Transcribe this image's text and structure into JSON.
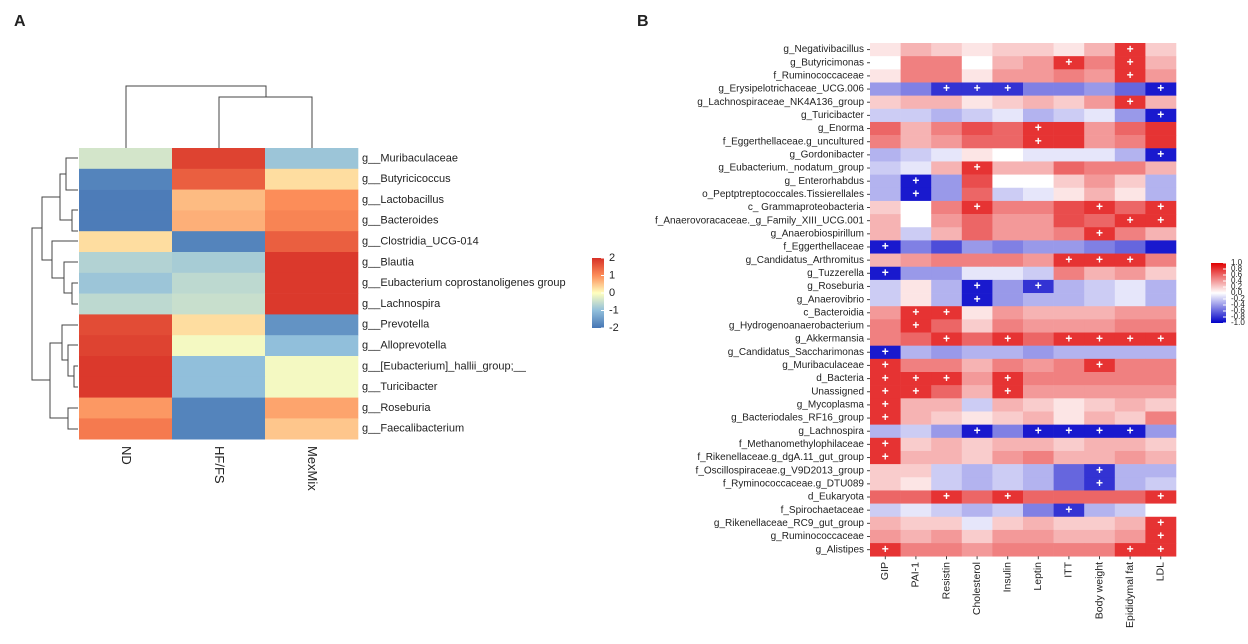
{
  "chart_data": [
    {
      "type": "heatmap",
      "panel": "A",
      "rows": [
        "g__Muribaculaceae",
        "g__Butyricicoccus",
        "g__Lactobacillus",
        "g__Bacteroides",
        "g__Clostridia_UCG-014",
        "g__Blautia",
        "g__Eubacterium coprostanoligenes group",
        "g__Lachnospira",
        "g__Prevotella",
        "g__Alloprevotella",
        "g__[Eubacterium]_hallii_group;__",
        "g__Turicibacter",
        "g__Roseburia",
        "g__Faecalibacterium"
      ],
      "columns": [
        "ND",
        "HF/FS",
        "MexMix"
      ],
      "values": [
        [
          -0.4,
          1.8,
          -0.9
        ],
        [
          -1.8,
          1.5,
          0.3
        ],
        [
          -1.9,
          0.6,
          1.0
        ],
        [
          -1.9,
          0.7,
          1.1
        ],
        [
          0.3,
          -1.8,
          1.5
        ],
        [
          -0.7,
          -0.8,
          1.9
        ],
        [
          -0.9,
          -0.6,
          1.9
        ],
        [
          -0.6,
          -0.5,
          1.9
        ],
        [
          1.7,
          0.3,
          -1.6
        ],
        [
          1.8,
          -0.1,
          -1.0
        ],
        [
          1.9,
          -1.0,
          -0.1
        ],
        [
          1.9,
          -1.0,
          -0.1
        ],
        [
          0.9,
          -1.8,
          0.8
        ],
        [
          1.2,
          -1.8,
          0.5
        ]
      ],
      "zlim": [
        -2,
        2
      ],
      "zticks": [
        2,
        1,
        0,
        -1,
        -2
      ],
      "colors": [
        "#4575b4",
        "#91bfdb",
        "#ffffbf",
        "#fc8d59",
        "#d73027"
      ]
    },
    {
      "type": "heatmap",
      "panel": "B",
      "rows": [
        "g_Negativibacillus",
        "g_Butyricimonas",
        "f_Ruminococcaceae",
        "g_Erysipelotrichaceae_UCG.006",
        "g_Lachnospiraceae_NK4A136_group",
        "g_Turicibacter",
        "g_Enorma",
        "f_Eggerthellaceae.g_uncultured",
        "g_Gordonibacter",
        "g_Eubacterium._nodatum_group",
        "g_ Enterorhabdus",
        "o_Peptptreptococcales.Tissierellales",
        "c_ Grammaproteobacteria",
        "f_Anaerovoracaceae._g_Family_XIII_UCG.001",
        "g_Anaerobiospirillum",
        "f_Eggerthellaceae",
        "g_Candidatus_Arthromitus",
        "g_Tuzzerella",
        "g_Roseburia",
        "g_Anaerovibrio",
        "c_Bacteroidia",
        "g_Hydrogenoanaerobacterium",
        "g_Akkermansia",
        "g_Candidatus_Saccharimonas",
        "g_Muribaculaceae",
        "d_Bacteria",
        "Unassigned",
        "g_Mycoplasma",
        "g_Bacteriodales_RF16_group",
        "g_Lachnospira",
        "f_Methanomethylophilaceae",
        "f_Rikenellaceae.g_dgA.11_gut_group",
        "f_Oscillospiraceae.g_V9D2013_group",
        "f_Ryminococcaceae.g_DTU089",
        "d_Eukaryota",
        "f_Spirochaetaceae",
        "g_Rikenellaceae_RC9_gut_group",
        "g_Ruminococcaceae",
        "g_Alistipes"
      ],
      "columns": [
        "GIP",
        "PAI-1",
        "Resistin",
        "Cholesterol",
        "Insulin",
        "Leptin",
        "ITT",
        "Body weight",
        "Epididymal fat",
        "LDL"
      ],
      "values": [
        [
          0.1,
          0.3,
          0.2,
          0.1,
          0.2,
          0.2,
          0.1,
          0.3,
          0.8,
          0.2
        ],
        [
          0.0,
          0.5,
          0.5,
          0.0,
          0.3,
          0.4,
          0.8,
          0.5,
          0.8,
          0.3
        ],
        [
          0.1,
          0.5,
          0.5,
          0.1,
          0.4,
          0.4,
          0.5,
          0.4,
          0.8,
          0.4
        ],
        [
          -0.4,
          -0.5,
          -0.8,
          -0.8,
          -0.8,
          -0.5,
          -0.5,
          -0.4,
          -0.6,
          -0.9
        ],
        [
          0.2,
          0.3,
          0.3,
          0.1,
          0.2,
          0.3,
          0.2,
          0.4,
          0.8,
          0.3
        ],
        [
          -0.2,
          -0.2,
          -0.3,
          -0.2,
          -0.1,
          -0.3,
          -0.2,
          -0.1,
          -0.4,
          -0.9
        ],
        [
          0.6,
          0.3,
          0.5,
          0.7,
          0.6,
          0.8,
          0.8,
          0.4,
          0.6,
          0.8
        ],
        [
          0.5,
          0.3,
          0.4,
          0.6,
          0.6,
          0.8,
          0.8,
          0.4,
          0.5,
          0.8
        ],
        [
          -0.3,
          -0.2,
          -0.1,
          0.1,
          0.0,
          -0.1,
          -0.1,
          -0.1,
          -0.3,
          -0.9
        ],
        [
          -0.2,
          -0.1,
          0.3,
          0.8,
          0.3,
          0.3,
          0.6,
          0.5,
          0.5,
          0.3
        ],
        [
          -0.3,
          -0.9,
          -0.4,
          0.7,
          0.0,
          0.0,
          0.2,
          0.4,
          0.2,
          -0.3
        ],
        [
          -0.3,
          -0.9,
          -0.4,
          0.6,
          -0.2,
          -0.1,
          0.1,
          0.3,
          0.1,
          -0.3
        ],
        [
          0.2,
          0.0,
          0.5,
          0.8,
          0.5,
          0.5,
          0.7,
          0.8,
          0.6,
          0.8
        ],
        [
          0.3,
          0.0,
          0.4,
          0.6,
          0.4,
          0.4,
          0.7,
          0.6,
          0.8,
          0.8
        ],
        [
          0.3,
          -0.2,
          0.3,
          0.6,
          0.4,
          0.4,
          0.5,
          0.8,
          0.5,
          0.3
        ],
        [
          -0.9,
          -0.5,
          -0.7,
          -0.4,
          -0.5,
          -0.4,
          -0.4,
          -0.5,
          -0.6,
          -0.9
        ],
        [
          0.3,
          0.4,
          0.5,
          0.5,
          0.5,
          0.4,
          0.8,
          0.8,
          0.8,
          0.5
        ],
        [
          -0.9,
          -0.4,
          -0.4,
          -0.1,
          -0.1,
          -0.2,
          0.5,
          0.3,
          0.4,
          0.2
        ],
        [
          -0.2,
          0.1,
          -0.3,
          -0.9,
          -0.4,
          -0.8,
          -0.3,
          -0.2,
          -0.1,
          -0.3
        ],
        [
          -0.2,
          0.1,
          -0.3,
          -0.9,
          -0.4,
          -0.3,
          -0.3,
          -0.2,
          -0.1,
          -0.3
        ],
        [
          0.4,
          0.8,
          0.8,
          0.1,
          0.4,
          0.3,
          0.3,
          0.3,
          0.4,
          0.4
        ],
        [
          0.5,
          0.8,
          0.6,
          0.2,
          0.5,
          0.4,
          0.4,
          0.4,
          0.5,
          0.5
        ],
        [
          0.5,
          0.6,
          0.8,
          0.6,
          0.8,
          0.6,
          0.8,
          0.8,
          0.8,
          0.8
        ],
        [
          -0.9,
          -0.3,
          -0.4,
          -0.3,
          -0.3,
          -0.4,
          -0.3,
          -0.3,
          -0.3,
          -0.3
        ],
        [
          0.8,
          0.5,
          0.5,
          0.3,
          0.5,
          0.4,
          0.5,
          0.8,
          0.5,
          0.5
        ],
        [
          0.8,
          0.8,
          0.8,
          0.4,
          0.8,
          0.5,
          0.5,
          0.5,
          0.5,
          0.5
        ],
        [
          0.8,
          0.8,
          0.6,
          0.3,
          0.8,
          0.4,
          0.4,
          0.4,
          0.4,
          0.4
        ],
        [
          0.8,
          0.3,
          0.3,
          -0.2,
          0.3,
          0.2,
          0.1,
          0.2,
          0.3,
          0.2
        ],
        [
          0.8,
          0.3,
          0.2,
          0.1,
          0.2,
          0.3,
          0.1,
          0.3,
          0.2,
          0.5
        ],
        [
          -0.3,
          -0.2,
          -0.4,
          -0.9,
          -0.5,
          -0.9,
          -0.9,
          -0.9,
          -0.9,
          -0.4
        ],
        [
          0.8,
          0.2,
          0.3,
          0.2,
          0.3,
          0.3,
          0.2,
          0.3,
          0.3,
          0.2
        ],
        [
          0.8,
          0.3,
          0.3,
          0.2,
          0.4,
          0.5,
          0.3,
          0.3,
          0.4,
          0.3
        ],
        [
          0.2,
          0.2,
          -0.2,
          -0.3,
          -0.2,
          -0.3,
          -0.6,
          -0.8,
          -0.3,
          -0.3
        ],
        [
          0.2,
          0.1,
          -0.2,
          -0.3,
          -0.2,
          -0.3,
          -0.6,
          -0.8,
          -0.3,
          -0.2
        ],
        [
          0.6,
          0.6,
          0.8,
          0.6,
          0.8,
          0.6,
          0.6,
          0.6,
          0.6,
          0.8
        ],
        [
          -0.2,
          -0.1,
          -0.2,
          -0.3,
          -0.2,
          -0.5,
          -0.8,
          -0.3,
          -0.2,
          0.0
        ],
        [
          0.3,
          0.2,
          0.2,
          -0.1,
          0.2,
          0.3,
          0.2,
          0.2,
          0.3,
          0.8
        ],
        [
          0.4,
          0.3,
          0.4,
          0.2,
          0.4,
          0.4,
          0.3,
          0.3,
          0.4,
          0.8
        ],
        [
          0.8,
          0.5,
          0.5,
          0.4,
          0.5,
          0.5,
          0.5,
          0.5,
          0.8,
          0.8
        ]
      ],
      "significant": [
        [
          0,
          0,
          0,
          0,
          0,
          0,
          0,
          0,
          1,
          0
        ],
        [
          0,
          0,
          0,
          0,
          0,
          0,
          1,
          0,
          1,
          0
        ],
        [
          0,
          0,
          0,
          0,
          0,
          0,
          0,
          0,
          1,
          0
        ],
        [
          0,
          0,
          1,
          1,
          1,
          0,
          0,
          0,
          0,
          1
        ],
        [
          0,
          0,
          0,
          0,
          0,
          0,
          0,
          0,
          1,
          0
        ],
        [
          0,
          0,
          0,
          0,
          0,
          0,
          0,
          0,
          0,
          1
        ],
        [
          0,
          0,
          0,
          0,
          0,
          1,
          0,
          0,
          0,
          0
        ],
        [
          0,
          0,
          0,
          0,
          0,
          1,
          0,
          0,
          0,
          0
        ],
        [
          0,
          0,
          0,
          0,
          0,
          0,
          0,
          0,
          0,
          1
        ],
        [
          0,
          0,
          0,
          1,
          0,
          0,
          0,
          0,
          0,
          0
        ],
        [
          0,
          1,
          0,
          0,
          0,
          0,
          0,
          0,
          0,
          0
        ],
        [
          0,
          1,
          0,
          0,
          0,
          0,
          0,
          0,
          0,
          0
        ],
        [
          0,
          0,
          0,
          1,
          0,
          0,
          0,
          1,
          0,
          1
        ],
        [
          0,
          0,
          0,
          0,
          0,
          0,
          0,
          0,
          1,
          1
        ],
        [
          0,
          0,
          0,
          0,
          0,
          0,
          0,
          1,
          0,
          0
        ],
        [
          1,
          0,
          0,
          0,
          0,
          0,
          0,
          0,
          0,
          0
        ],
        [
          0,
          0,
          0,
          0,
          0,
          0,
          1,
          1,
          1,
          0
        ],
        [
          1,
          0,
          0,
          0,
          0,
          0,
          0,
          0,
          0,
          0
        ],
        [
          0,
          0,
          0,
          1,
          0,
          1,
          0,
          0,
          0,
          0
        ],
        [
          0,
          0,
          0,
          1,
          0,
          0,
          0,
          0,
          0,
          0
        ],
        [
          0,
          1,
          1,
          0,
          0,
          0,
          0,
          0,
          0,
          0
        ],
        [
          0,
          1,
          0,
          0,
          0,
          0,
          0,
          0,
          0,
          0
        ],
        [
          0,
          0,
          1,
          0,
          1,
          0,
          1,
          1,
          1,
          1
        ],
        [
          1,
          0,
          0,
          0,
          0,
          0,
          0,
          0,
          0,
          0
        ],
        [
          1,
          0,
          0,
          0,
          0,
          0,
          0,
          1,
          0,
          0
        ],
        [
          1,
          1,
          1,
          0,
          1,
          0,
          0,
          0,
          0,
          0
        ],
        [
          1,
          1,
          0,
          0,
          1,
          0,
          0,
          0,
          0,
          0
        ],
        [
          1,
          0,
          0,
          0,
          0,
          0,
          0,
          0,
          0,
          0
        ],
        [
          1,
          0,
          0,
          0,
          0,
          0,
          0,
          0,
          0,
          0
        ],
        [
          0,
          0,
          0,
          1,
          0,
          1,
          1,
          1,
          1,
          0
        ],
        [
          1,
          0,
          0,
          0,
          0,
          0,
          0,
          0,
          0,
          0
        ],
        [
          1,
          0,
          0,
          0,
          0,
          0,
          0,
          0,
          0,
          0
        ],
        [
          0,
          0,
          0,
          0,
          0,
          0,
          0,
          1,
          0,
          0
        ],
        [
          0,
          0,
          0,
          0,
          0,
          0,
          0,
          1,
          0,
          0
        ],
        [
          0,
          0,
          1,
          0,
          1,
          0,
          0,
          0,
          0,
          1
        ],
        [
          0,
          0,
          0,
          0,
          0,
          0,
          1,
          0,
          0,
          0
        ],
        [
          0,
          0,
          0,
          0,
          0,
          0,
          0,
          0,
          0,
          1
        ],
        [
          0,
          0,
          0,
          0,
          0,
          0,
          0,
          0,
          0,
          1
        ],
        [
          1,
          0,
          0,
          0,
          0,
          0,
          0,
          0,
          1,
          1
        ]
      ],
      "marker": "+",
      "zlim": [
        -1,
        1
      ],
      "zticks": [
        {
          "value": 1,
          "label": "1.0"
        },
        0.8,
        0.6,
        0.4,
        0.2,
        {
          "value": 0,
          "label": "0.0"
        },
        -0.2,
        -0.4,
        -0.6,
        -0.8,
        {
          "value": -1,
          "label": "-1.0"
        }
      ],
      "colors": [
        "#0000c8",
        "#ffffff",
        "#e00000"
      ]
    }
  ]
}
